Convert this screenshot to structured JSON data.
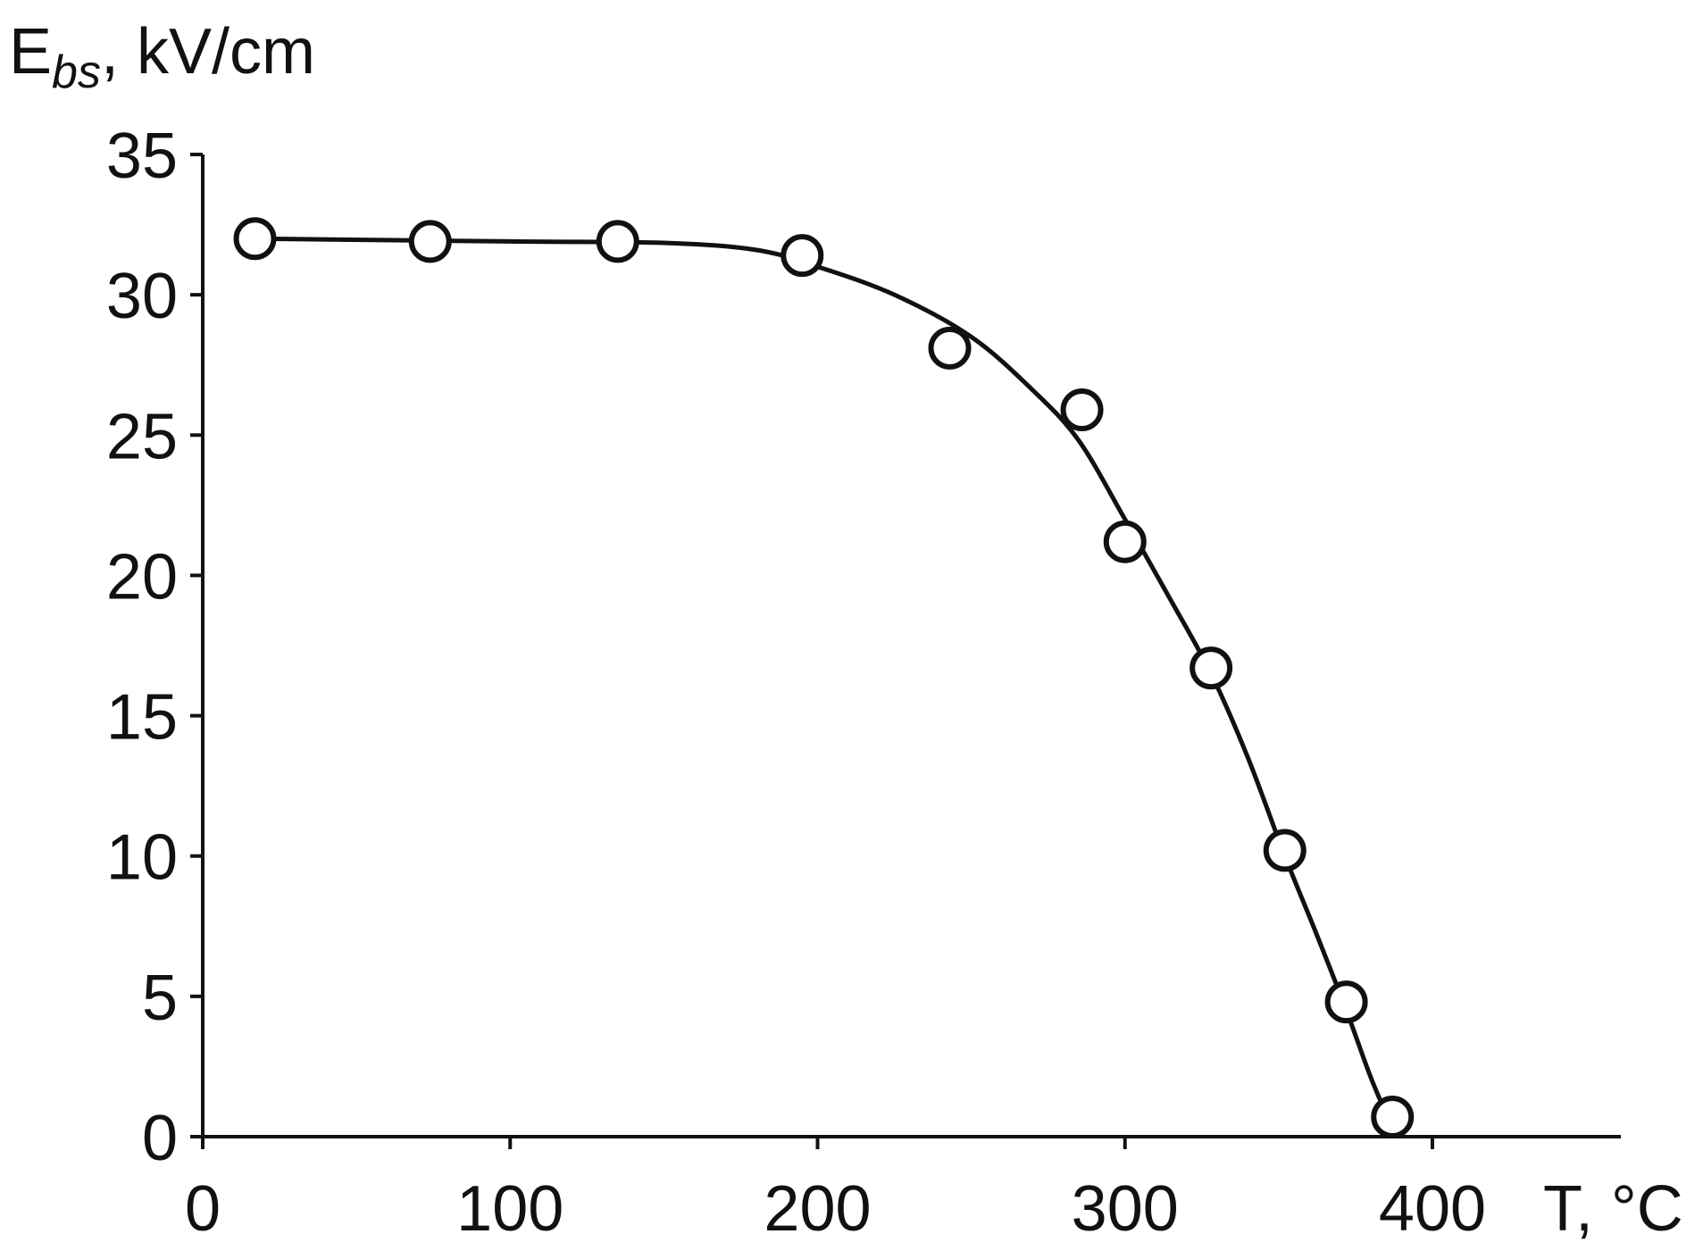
{
  "chart_data": {
    "type": "scatter",
    "title": "",
    "xlabel": "T, °C",
    "ylabel": {
      "main": "E",
      "sub": "bs",
      "unit": ", kV/cm"
    },
    "xlim": [
      0,
      460
    ],
    "ylim": [
      0,
      35
    ],
    "x_ticks": [
      0,
      100,
      200,
      300,
      400
    ],
    "y_ticks": [
      0,
      5,
      10,
      15,
      20,
      25,
      30,
      35
    ],
    "grid": false,
    "legend": "none",
    "series": [
      {
        "marker": "open-circle",
        "points": [
          {
            "x": 17,
            "y": 32.0
          },
          {
            "x": 74,
            "y": 31.9
          },
          {
            "x": 135,
            "y": 31.9
          },
          {
            "x": 195,
            "y": 31.4
          },
          {
            "x": 243,
            "y": 28.1
          },
          {
            "x": 286,
            "y": 25.9
          },
          {
            "x": 300,
            "y": 21.2
          },
          {
            "x": 328,
            "y": 16.7
          },
          {
            "x": 352,
            "y": 10.2
          },
          {
            "x": 372,
            "y": 4.8
          },
          {
            "x": 387,
            "y": 0.7
          }
        ]
      }
    ],
    "fit_curve": {
      "style": "solid",
      "points": [
        {
          "x": 17,
          "y": 32.0
        },
        {
          "x": 100,
          "y": 31.9
        },
        {
          "x": 150,
          "y": 31.85
        },
        {
          "x": 180,
          "y": 31.6
        },
        {
          "x": 200,
          "y": 31.0
        },
        {
          "x": 225,
          "y": 30.0
        },
        {
          "x": 250,
          "y": 28.5
        },
        {
          "x": 270,
          "y": 26.6
        },
        {
          "x": 285,
          "y": 24.8
        },
        {
          "x": 300,
          "y": 22.0
        },
        {
          "x": 315,
          "y": 19.1
        },
        {
          "x": 328,
          "y": 16.5
        },
        {
          "x": 340,
          "y": 13.5
        },
        {
          "x": 352,
          "y": 10.0
        },
        {
          "x": 362,
          "y": 7.3
        },
        {
          "x": 372,
          "y": 4.5
        },
        {
          "x": 380,
          "y": 2.1
        },
        {
          "x": 387,
          "y": 0.3
        }
      ]
    },
    "colors": {
      "line": "#111111",
      "marker_fill": "#ffffff",
      "marker_stroke": "#111111"
    }
  }
}
